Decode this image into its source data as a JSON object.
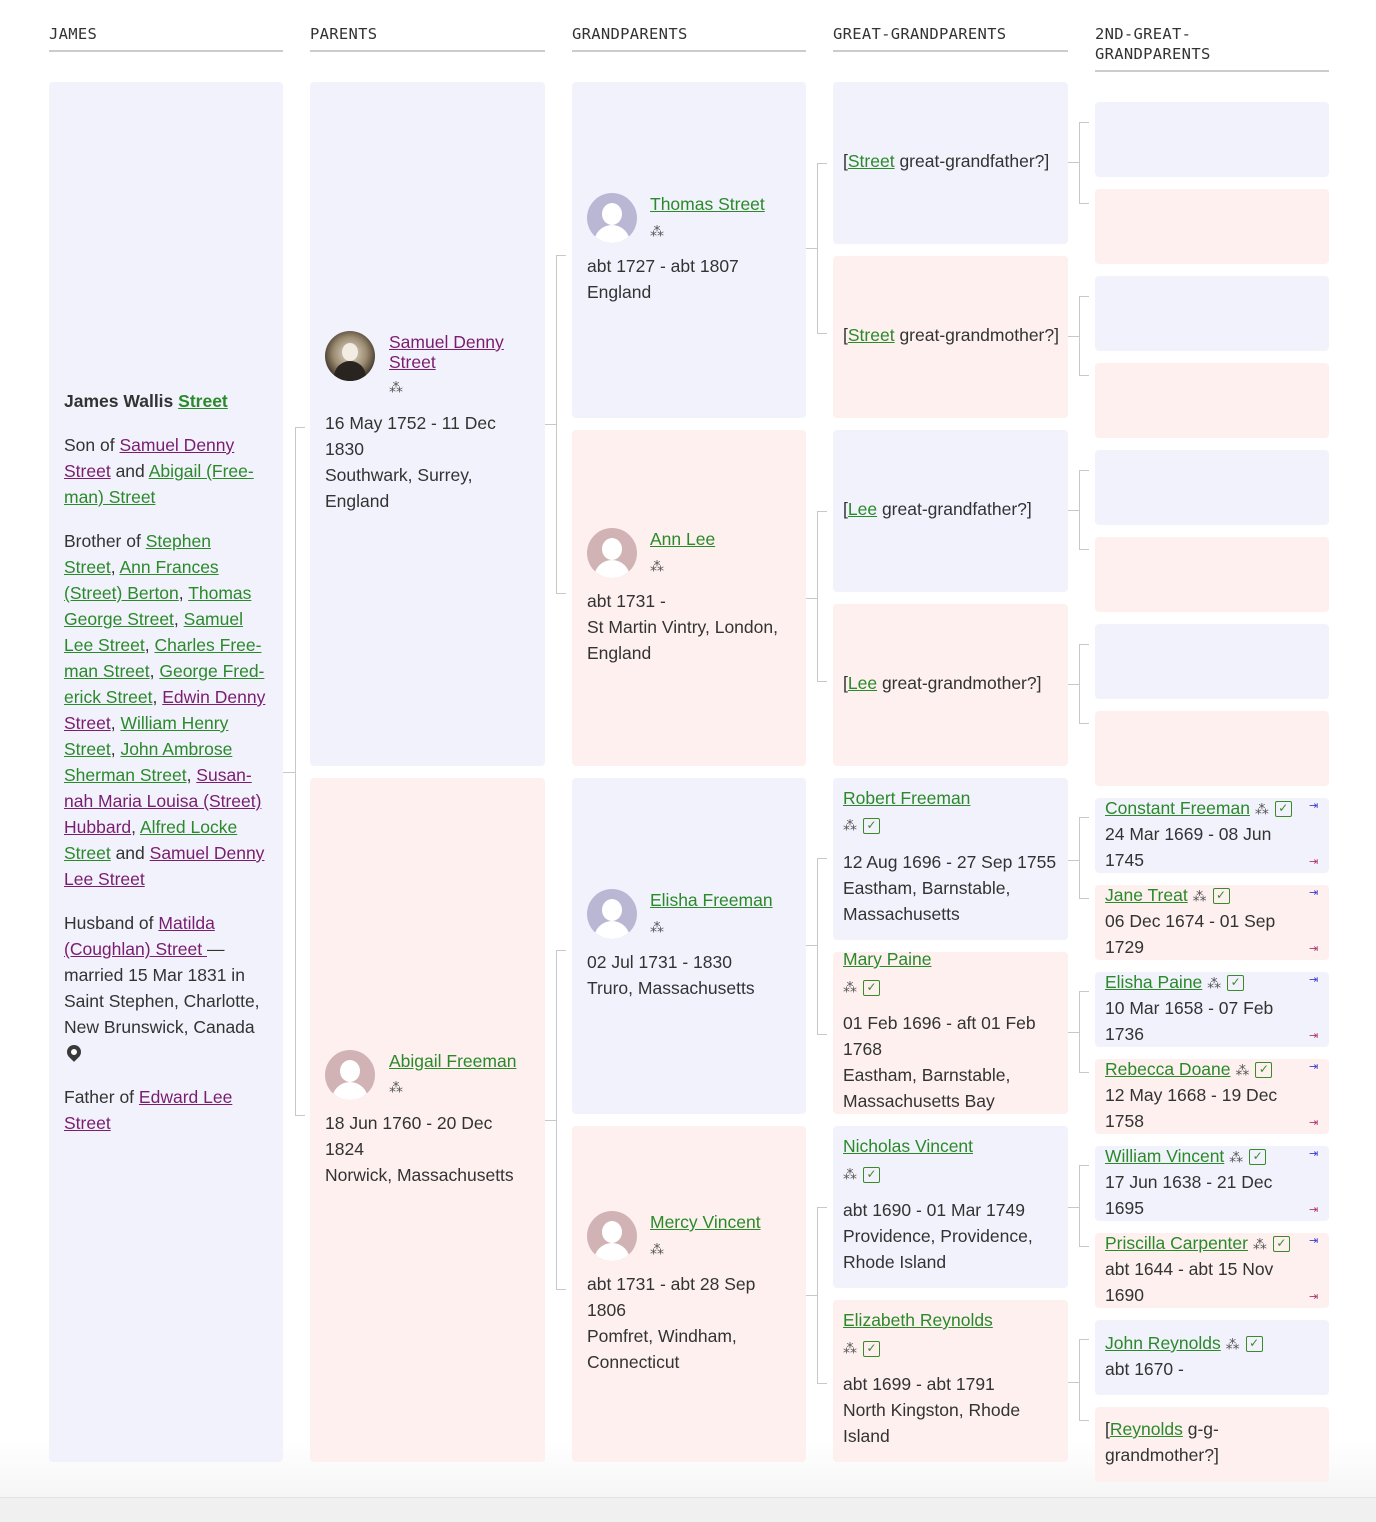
{
  "headers": [
    "JAMES",
    "PARENTS",
    "GRANDPARENTS",
    "GREAT-GRANDPARENTS",
    "2ND-GREAT-GRANDPARENTS"
  ],
  "subject": {
    "first": "James Wallis",
    "surname": "Street",
    "son_of": "Son of",
    "father_l1": "Samuel Denny",
    "father_l2": "Street",
    "and": "and",
    "mother_l1": "Abigail (Free-",
    "mother_l2": "man) Street",
    "brother_of": "Brother of",
    "siblings": [
      "Stephen",
      "Street",
      ", ",
      "Ann Frances",
      "(Street) Berton",
      ", ",
      "Thomas",
      "George Street",
      ", ",
      "Samuel",
      "Lee Street",
      ", ",
      "Charles Free-",
      "man Street",
      ", ",
      "George Fred-",
      "erick Street",
      ", ",
      "Edwin Denny",
      "Street",
      ", ",
      "William Henry",
      "Street",
      ", ",
      "John Ambrose",
      "Sherman Street",
      ", ",
      "Susan-",
      "nah Maria Louisa (Street)",
      "Hubbard",
      ", ",
      "Alfred Locke",
      "Street",
      " and ",
      "Samuel Denny",
      "Lee Street"
    ],
    "husband_of": "Husband of",
    "spouse_l1": "Matilda",
    "spouse_l2": "(Coughlan) Street ",
    "dash": "—",
    "married_l1": "married 15 Mar 1831 in",
    "married_l2": "Saint Stephen, Charlotte,",
    "married_l3": "New Brunswick, Canada",
    "father_of": "Father of",
    "child_l1": "Edward Lee",
    "child_l2": "Street",
    "pin_icon": "map-pin-icon"
  },
  "parents": [
    {
      "name_l1": "Samuel Denny",
      "name_l2": "Street",
      "dates": "16 May 1752 - 11 Dec",
      "dates2": "1830",
      "place_l1": "Southwark, Surrey,",
      "place_l2": "England"
    },
    {
      "name": "Abigail Freeman",
      "dates": "18 Jun 1760 - 20 Dec",
      "dates2": "1824",
      "place_l1": "Norwick, Massachusetts"
    }
  ],
  "grandparents": [
    {
      "name": "Thomas Street",
      "dates": "abt 1727 - abt 1807",
      "place_l1": "England"
    },
    {
      "name": "Ann Lee",
      "dates": "abt 1731 -",
      "place_l1": "St Martin Vintry, London,",
      "place_l2": "England"
    },
    {
      "name": "Elisha Freeman",
      "dates": "02 Jul 1731 - 1830",
      "place_l1": "Truro, Massachusetts"
    },
    {
      "name": "Mercy Vincent",
      "dates": "abt 1731 - abt 28 Sep",
      "dates2": "1806",
      "place_l1": "Pomfret, Windham,",
      "place_l2": "Connecticut"
    }
  ],
  "great_grandparents": [
    {
      "open": "[",
      "surname": "Street",
      "rest": " great-grandfather?]"
    },
    {
      "open": "[",
      "surname": "Street",
      "rest": " great-grandmother?]"
    },
    {
      "open": "[",
      "surname": "Lee",
      "rest": " great-grandfather?]"
    },
    {
      "open": "[",
      "surname": "Lee",
      "rest": " great-grandmother?]"
    },
    {
      "name": "Robert Freeman",
      "dates": "12 Aug 1696 - 27 Sep 1755",
      "place_l1": "Eastham, Barnstable,",
      "place_l2": "Massachusetts"
    },
    {
      "name": "Mary Paine",
      "dates": "01 Feb 1696 - aft 01 Feb",
      "dates2": "1768",
      "place_l1": "Eastham, Barnstable,",
      "place_l2": "Massachusetts Bay"
    },
    {
      "name": "Nicholas Vincent",
      "dates": "abt 1690 - 01 Mar 1749",
      "place_l1": "Providence, Providence,",
      "place_l2": "Rhode Island"
    },
    {
      "name": "Elizabeth Reynolds",
      "dates": "abt 1699 - abt 1791",
      "place_l1": "North Kingston, Rhode",
      "place_l2": "Island"
    }
  ],
  "gg_grandparents": [
    {
      "name": "Constant Freeman",
      "dates": "24 Mar 1669 - 08 Jun",
      "dates2": "1745"
    },
    {
      "name": "Jane Treat",
      "dates": "06 Dec 1674 - 01 Sep",
      "dates2": "1729"
    },
    {
      "name": "Elisha Paine",
      "dates": "10 Mar 1658 - 07 Feb",
      "dates2": "1736"
    },
    {
      "name": "Rebecca Doane",
      "dates": "12 May 1668 - 19 Dec",
      "dates2": "1758"
    },
    {
      "name": "William Vincent",
      "dates": "17 Jun 1638 - 21 Dec",
      "dates2": "1695"
    },
    {
      "name": "Priscilla Carpenter",
      "dates": "abt 1644 - abt 15 Nov",
      "dates2": "1690"
    },
    {
      "name": "John Reynolds",
      "dates": "abt 1670 -"
    },
    {
      "open": "[",
      "surname": "Reynolds",
      "rest": " g-g-",
      "rest2": "grandmother?]"
    }
  ],
  "icons": {
    "tree": "family-tree-icon",
    "check": "✓",
    "arrow_in": "⇥",
    "arrow_out": "⇥"
  },
  "colors": {
    "male_bg": "#f2f2fd",
    "female_bg": "#fdf0ef",
    "link_green": "#2a8a2a",
    "link_purple": "#7a1d6e"
  }
}
